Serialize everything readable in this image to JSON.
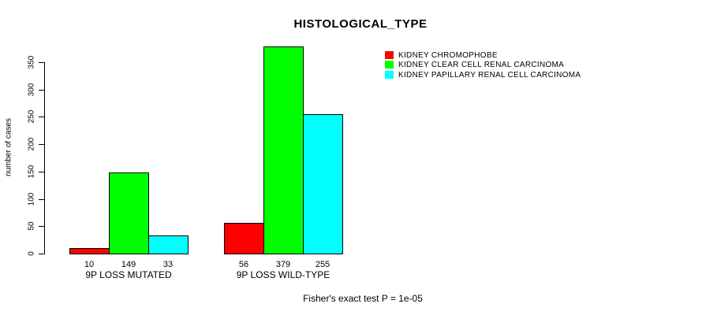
{
  "chart_data": {
    "type": "bar",
    "title": "HISTOLOGICAL_TYPE",
    "ylabel": "number of cases",
    "xlabel": "",
    "categories": [
      "9P LOSS MUTATED",
      "9P LOSS WILD-TYPE"
    ],
    "series": [
      {
        "name": "KIDNEY CHROMOPHOBE",
        "color": "#ff0000",
        "values": [
          10,
          56
        ]
      },
      {
        "name": "KIDNEY CLEAR CELL RENAL CARCINOMA",
        "color": "#00ff00",
        "values": [
          149,
          379
        ]
      },
      {
        "name": "KIDNEY PAPILLARY RENAL CELL CARCINOMA",
        "color": "#00ffff",
        "values": [
          33,
          255
        ]
      }
    ],
    "yticks": [
      0,
      50,
      100,
      150,
      200,
      250,
      300,
      350
    ],
    "ylim": [
      0,
      350
    ],
    "grid": false,
    "legend_position": "top-right",
    "bar_value_labels_shown": true,
    "annotation": "Fisher's exact test P = 1e-05"
  },
  "colors": {
    "axis": "#000000",
    "bar_border": "#000000",
    "background": "#ffffff"
  }
}
